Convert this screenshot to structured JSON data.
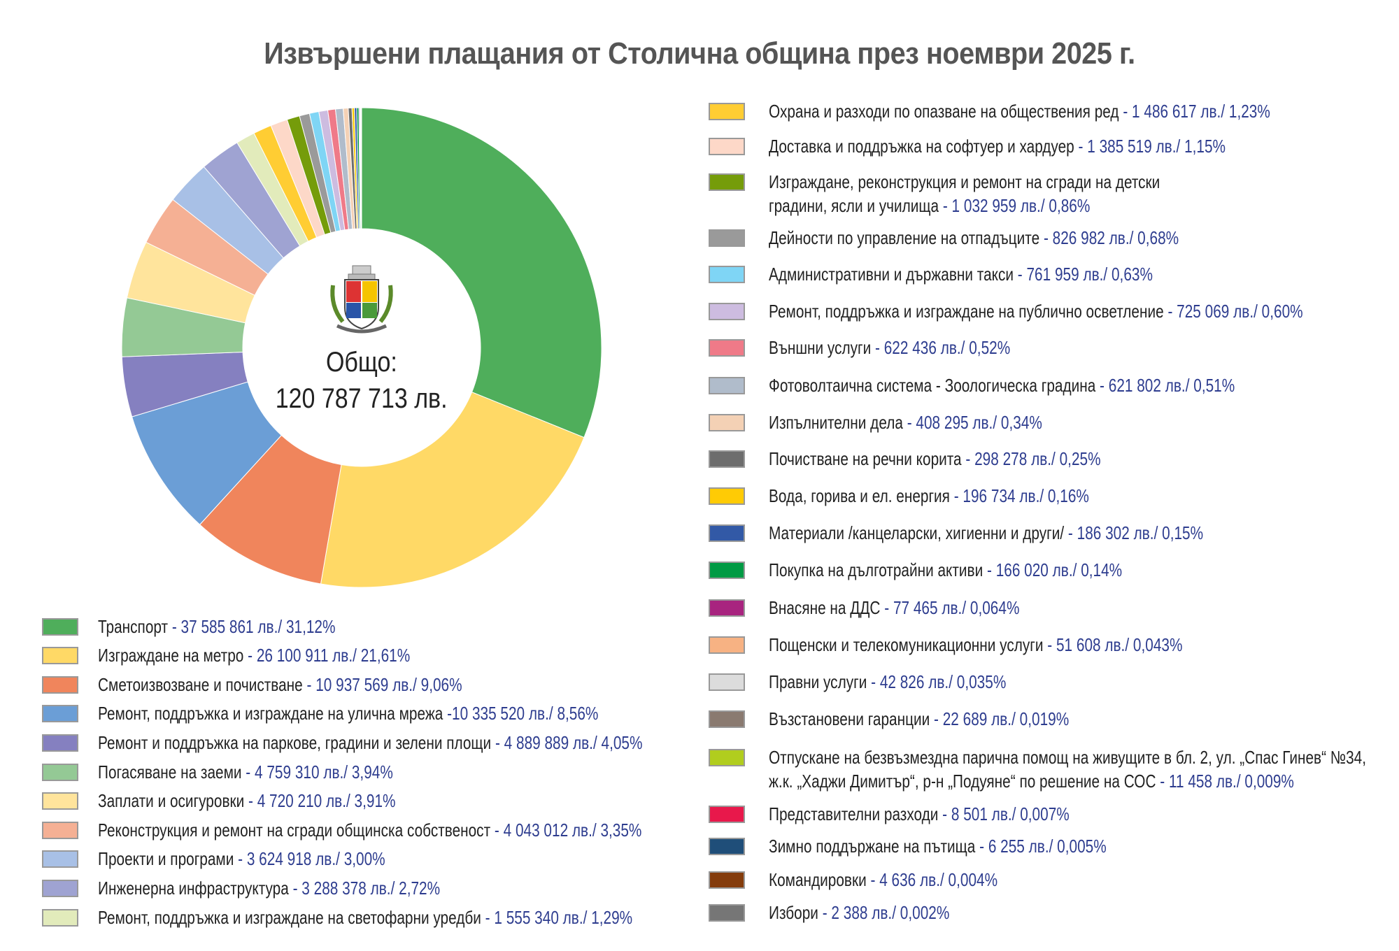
{
  "chart_data": {
    "type": "pie",
    "variant": "donut",
    "title": "Извършени плащания от Столична община през ноември 2025 г.",
    "center_label": "Общо:",
    "center_value": "120 787 713 лв.",
    "legend_placement": "left-bottom and right",
    "unit": "лв.",
    "slices": [
      {
        "label": "Транспорт",
        "value": 37585861,
        "value_text": "37 585 861 лв.",
        "percent": "31,12%",
        "color": "#4fae5b"
      },
      {
        "label": "Изграждане на метро",
        "value": 26100911,
        "value_text": "26 100 911 лв.",
        "percent": "21,61%",
        "color": "#ffd966"
      },
      {
        "label": "Сметоизвозване и почистване",
        "value": 10937569,
        "value_text": "10 937 569 лв.",
        "percent": "9,06%",
        "color": "#f0855c"
      },
      {
        "label": "Ремонт, поддръжка и изграждане на улична мрежа",
        "value": 10335520,
        "value_text": "10 335 520 лв.",
        "percent": "8,56%",
        "color": "#6b9ed6",
        "sep": " -"
      },
      {
        "label": "Ремонт и поддръжка на паркове, градини и зелени площи",
        "value": 4889889,
        "value_text": "4 889 889 лв.",
        "percent": "4,05%",
        "color": "#8580c0"
      },
      {
        "label": "Погасяване на заеми",
        "value": 4759310,
        "value_text": "4 759 310 лв.",
        "percent": "3,94%",
        "color": "#94c995"
      },
      {
        "label": "Заплати и осигуровки",
        "value": 4720210,
        "value_text": "4 720 210 лв.",
        "percent": "3,91%",
        "color": "#ffe49c"
      },
      {
        "label": "Реконструкция и ремонт на сгради общинска собственост",
        "value": 4043012,
        "value_text": "4 043 012 лв.",
        "percent": "3,35%",
        "color": "#f5b094"
      },
      {
        "label": "Проекти и програми",
        "value": 3624918,
        "value_text": "3 624 918 лв.",
        "percent": "3,00%",
        "color": "#a8c0e6"
      },
      {
        "label": "Инженерна инфраструктура",
        "value": 3288378,
        "value_text": "3 288 378 лв.",
        "percent": "2,72%",
        "color": "#9fa3d2"
      },
      {
        "label": "Ремонт, поддръжка и изграждане на светофарни уредби",
        "value": 1555340,
        "value_text": "1 555 340 лв.",
        "percent": "1,29%",
        "color": "#e2ebbb"
      },
      {
        "label": "Охрана и разходи по опазване на обществения ред",
        "value": 1486617,
        "value_text": "1 486 617 лв.",
        "percent": "1,23%",
        "color": "#ffcd33"
      },
      {
        "label": "Доставка и поддръжка на софтуер и хардуер",
        "value": 1385519,
        "value_text": "1 385 519 лв.",
        "percent": "1,15%",
        "color": "#fdd8c8"
      },
      {
        "label": "Изграждане, реконструкция и ремонт на сгради на детски",
        "label2": "градини, ясли и училища",
        "value": 1032959,
        "value_text": "1 032 959 лв.",
        "percent": "0,86%",
        "color": "#759c0a"
      },
      {
        "label": "Дейности по управление на отпадъците",
        "value": 826982,
        "value_text": "826 982 лв.",
        "percent": "0,68%",
        "color": "#9a9a9a"
      },
      {
        "label": "Административни и държавни такси",
        "value": 761959,
        "value_text": "761 959 лв.",
        "percent": "0,63%",
        "color": "#7fd5f5"
      },
      {
        "label": "Ремонт, поддръжка и изграждане на публично осветление",
        "value": 725069,
        "value_text": "725 069 лв.",
        "percent": "0,60%",
        "color": "#cdbce0"
      },
      {
        "label": "Външни услуги",
        "value": 622436,
        "value_text": "622 436 лв.",
        "percent": "0,52%",
        "color": "#ef7a88"
      },
      {
        "label": "Фотоволтаична система - Зоологическа градина",
        "value": 621802,
        "value_text": "621 802 лв.",
        "percent": "0,51%",
        "color": "#b0bccb"
      },
      {
        "label": "Изпълнителни дела",
        "value": 408295,
        "value_text": "408 295 лв.",
        "percent": "0,34%",
        "color": "#f4d1b5"
      },
      {
        "label": "Почистване на речни корита",
        "value": 298278,
        "value_text": "298 278 лв.",
        "percent": "0,25%",
        "color": "#6d6d6d"
      },
      {
        "label": "Вода, горива и ел. енергия",
        "value": 196734,
        "value_text": "196 734 лв.",
        "percent": "0,16%",
        "color": "#ffcb05"
      },
      {
        "label": "Материали /канцеларски, хигиенни и други/",
        "value": 186302,
        "value_text": "186 302 лв.",
        "percent": "0,15%",
        "color": "#3259a6"
      },
      {
        "label": "Покупка на дълготрайни активи",
        "value": 166020,
        "value_text": "166 020 лв.",
        "percent": "0,14%",
        "color": "#009a44"
      },
      {
        "label": "Внасяне на ДДС ",
        "value": 77465,
        "value_text": "77 465 лв.",
        "percent": "0,064%",
        "color": "#a8247f"
      },
      {
        "label": "Пощенски и телекомуникационни услуги",
        "value": 51608,
        "value_text": "51 608 лв.",
        "percent": "0,043%",
        "color": "#f7b283"
      },
      {
        "label": "Правни услуги",
        "value": 42826,
        "value_text": "42 826 лв.",
        "percent": "0,035%",
        "color": "#dcdcdc"
      },
      {
        "label": "Възстановени гаранции",
        "value": 22689,
        "value_text": "22 689 лв.",
        "percent": "0,019%",
        "color": "#8a7a70"
      },
      {
        "label": "Отпускане на безвъзмездна парична помощ на живущите в бл. 2, ул. „Спас Гинев“ №34,",
        "label2": "ж.к. „Хаджи Димитър“, р-н „Подуяне“ по решение на СОС",
        "value": 11458,
        "value_text": "11 458 лв.",
        "percent": "0,009%",
        "color": "#b1cd1e"
      },
      {
        "label": "Представителни разходи",
        "value": 8501,
        "value_text": "8 501 лв.",
        "percent": "0,007%",
        "color": "#e8184b"
      },
      {
        "label": "Зимно поддържане на пътища",
        "value": 6255,
        "value_text": "6 255 лв.",
        "percent": "0,005%",
        "color": "#1f4e79"
      },
      {
        "label": "Командировки",
        "value": 4636,
        "value_text": "4 636 лв.",
        "percent": "0,004%",
        "color": "#843c0c"
      },
      {
        "label": "Избори",
        "value": 2388,
        "value_text": "2 388 лв.",
        "percent": "0,002%",
        "color": "#767676"
      }
    ]
  }
}
